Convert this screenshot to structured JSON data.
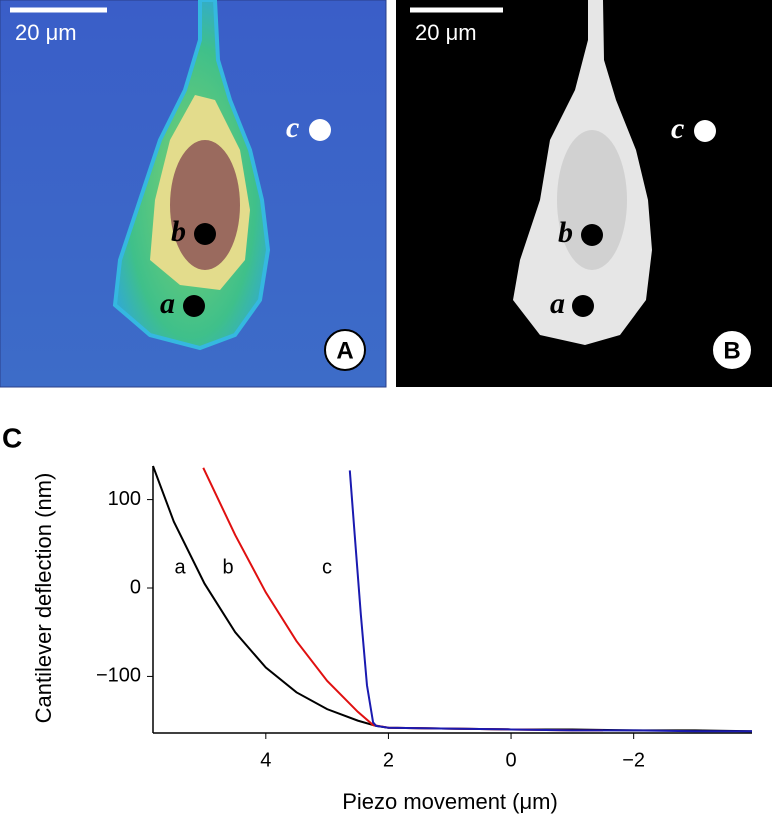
{
  "panels": [
    {
      "label": "A",
      "scale_bar": "20 μm",
      "points": [
        "a",
        "b",
        "c"
      ]
    },
    {
      "label": "B",
      "scale_bar": "20 μm",
      "points": [
        "a",
        "b",
        "c"
      ]
    }
  ],
  "chart_data": {
    "type": "line",
    "label": "C",
    "x_label": "Piezo movement (μm)",
    "y_label": "Cantilever deflection (nm)",
    "xlim": [
      5.84,
      -3.93
    ],
    "ylim": [
      -164,
      138
    ],
    "xticks": [
      4,
      2,
      0,
      {
        "value": -2,
        "label": "−2"
      }
    ],
    "yticks": [
      100,
      0,
      {
        "value": -100,
        "label": "−100"
      }
    ],
    "series": [
      {
        "name": "a",
        "color": "#000000",
        "x": [
          5.84,
          5.5,
          5.0,
          4.5,
          4.0,
          3.5,
          3.0,
          2.5,
          2.2,
          2.0,
          1.0,
          0,
          -1,
          -2,
          -3,
          -3.93
        ],
        "values": [
          138,
          75,
          5,
          -50,
          -90,
          -118,
          -137,
          -150,
          -156,
          -158,
          -159,
          -160,
          -160,
          -161,
          -161,
          -162
        ]
      },
      {
        "name": "b",
        "color": "#e01010",
        "x": [
          5.02,
          4.5,
          4.0,
          3.5,
          3.0,
          2.5,
          2.25,
          2.0,
          1,
          0,
          -1,
          -1.5
        ],
        "values": [
          136,
          60,
          -5,
          -60,
          -105,
          -140,
          -155,
          -158,
          -159,
          -160,
          -161,
          -161
        ]
      },
      {
        "name": "c",
        "color": "#1a1ab0",
        "x": [
          2.63,
          2.55,
          2.45,
          2.35,
          2.25,
          2.2,
          2,
          1,
          0,
          -1,
          -2,
          -3,
          -3.93
        ],
        "values": [
          133,
          60,
          -30,
          -110,
          -152,
          -156,
          -158,
          -159,
          -160,
          -161,
          -161,
          -162,
          -162
        ]
      }
    ]
  }
}
